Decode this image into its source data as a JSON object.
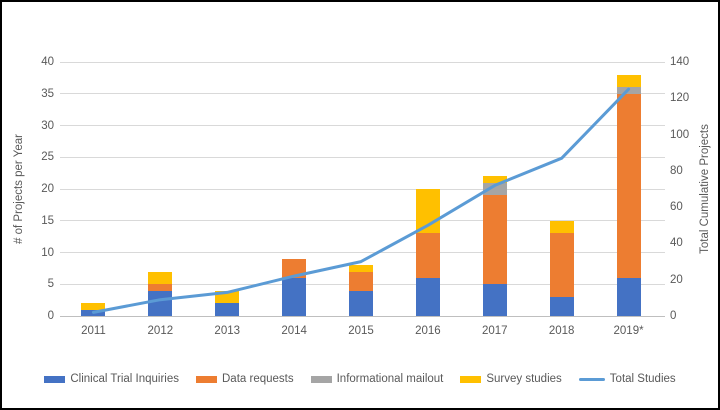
{
  "chart_data": {
    "type": "bar",
    "stacked": true,
    "title": "",
    "categories": [
      "2011",
      "2012",
      "2013",
      "2014",
      "2015",
      "2016",
      "2017",
      "2018",
      "2019*"
    ],
    "series": [
      {
        "name": "Clinical Trial Inquiries",
        "kind": "bar",
        "color": "#4472C4",
        "values": [
          1,
          4,
          2,
          6,
          4,
          6,
          5,
          3,
          6
        ]
      },
      {
        "name": "Data requests",
        "kind": "bar",
        "color": "#ED7D31",
        "values": [
          0,
          1,
          0,
          3,
          3,
          7,
          14,
          10,
          29
        ]
      },
      {
        "name": "Informational mailout",
        "kind": "bar",
        "color": "#A5A5A5",
        "values": [
          0,
          0,
          0,
          0,
          0,
          0,
          2,
          0,
          1
        ]
      },
      {
        "name": "Survey studies",
        "kind": "bar",
        "color": "#FFC000",
        "values": [
          1,
          2,
          2,
          0,
          1,
          7,
          1,
          2,
          2
        ]
      },
      {
        "name": "Total Studies",
        "kind": "line",
        "axis": "right",
        "color": "#5B9BD5",
        "values": [
          2,
          9,
          13,
          22,
          30,
          50,
          72,
          87,
          125
        ]
      }
    ],
    "yearly_totals": [
      2,
      7,
      4,
      9,
      8,
      20,
      22,
      15,
      38
    ],
    "left_axis": {
      "label": "# of Projects per Year",
      "min": 0,
      "max": 40,
      "step": 5,
      "ticks": [
        "0",
        "5",
        "10",
        "15",
        "20",
        "25",
        "30",
        "35",
        "40"
      ]
    },
    "right_axis": {
      "label": "Total Cumulative Projects",
      "min": 0,
      "max": 140,
      "step": 20,
      "ticks": [
        "0",
        "20",
        "40",
        "60",
        "80",
        "100",
        "120",
        "140"
      ]
    },
    "grid": true,
    "legend_position": "bottom",
    "colors": {
      "gridline": "#D9D9D9",
      "axis_line": "#BFBFBF",
      "tick_label": "#595959",
      "background": "#FFFFFF",
      "frame_border": "#000000"
    }
  }
}
